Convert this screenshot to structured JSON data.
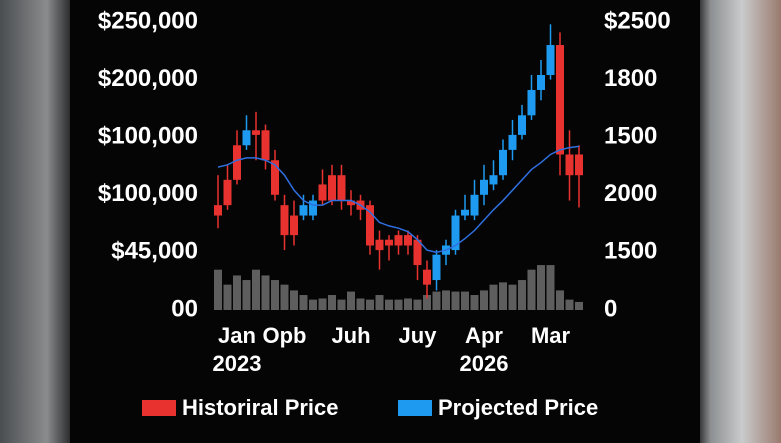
{
  "chart_data": {
    "type": "candlestick",
    "y_labels": [
      "$250,000",
      "$200,000",
      "$100,000",
      "$100,000",
      "$45,000",
      "00"
    ],
    "y2_labels": [
      "$2500",
      "1800",
      "1500",
      "2000",
      "1500",
      "0"
    ],
    "ylim": [
      0,
      250000
    ],
    "categories": [
      null,
      null,
      "Jan\n2023",
      null,
      null,
      null,
      null,
      "Opb",
      null,
      null,
      null,
      null,
      null,
      null,
      "Juh",
      null,
      null,
      null,
      null,
      null,
      null,
      "Juy",
      null,
      null,
      null,
      null,
      null,
      null,
      "Apr\n2026",
      null,
      null,
      null,
      null,
      null,
      null,
      "Mar",
      null,
      null,
      null
    ],
    "open": [
      91000,
      113000,
      143000,
      143000,
      156000,
      156000,
      130000,
      91000,
      82000,
      82000,
      82000,
      109000,
      117000,
      117000,
      95000,
      95000,
      91000,
      61000,
      61000,
      65000,
      65000,
      61000,
      35000,
      26000,
      48000,
      52000,
      82000,
      82000,
      100000,
      109000,
      117000,
      139000,
      152000,
      169000,
      191000,
      204000,
      230000,
      135000,
      135000
    ],
    "close": [
      82000,
      91000,
      113000,
      156000,
      152000,
      130000,
      100000,
      65000,
      65000,
      91000,
      95000,
      95000,
      95000,
      95000,
      91000,
      87000,
      56000,
      52000,
      56000,
      56000,
      56000,
      39000,
      22000,
      48000,
      56000,
      82000,
      87000,
      100000,
      113000,
      117000,
      139000,
      152000,
      169000,
      191000,
      204000,
      230000,
      135000,
      117000,
      117000
    ],
    "high": [
      117000,
      126000,
      156000,
      169000,
      172000,
      161000,
      139000,
      100000,
      95000,
      100000,
      100000,
      122000,
      126000,
      126000,
      104000,
      100000,
      95000,
      69000,
      65000,
      69000,
      69000,
      65000,
      43000,
      52000,
      61000,
      87000,
      100000,
      113000,
      126000,
      130000,
      148000,
      165000,
      178000,
      204000,
      217000,
      248000,
      241000,
      156000,
      143000
    ],
    "low": [
      71000,
      87000,
      109000,
      139000,
      130000,
      122000,
      95000,
      52000,
      56000,
      78000,
      78000,
      91000,
      91000,
      87000,
      82000,
      78000,
      48000,
      35000,
      43000,
      48000,
      48000,
      26000,
      10000,
      17000,
      39000,
      48000,
      78000,
      78000,
      91000,
      104000,
      113000,
      130000,
      148000,
      165000,
      182000,
      200000,
      117000,
      95000,
      89000
    ],
    "volume": [
      35000,
      22000,
      30000,
      26000,
      35000,
      30000,
      26000,
      22000,
      17000,
      13000,
      9000,
      10000,
      13000,
      9000,
      16000,
      10000,
      9000,
      13000,
      9000,
      9000,
      10000,
      9000,
      13000,
      16000,
      17000,
      16000,
      16000,
      13000,
      17000,
      22000,
      24000,
      22000,
      26000,
      35000,
      39000,
      39000,
      17000,
      9000,
      7000
    ],
    "projection": [
      124000,
      126000,
      130000,
      132000,
      132000,
      130000,
      126000,
      117000,
      104000,
      95000,
      91000,
      91000,
      95000,
      95000,
      95000,
      91000,
      85000,
      76000,
      73000,
      71000,
      68000,
      61000,
      52000,
      50000,
      52000,
      56000,
      62000,
      69000,
      78000,
      87000,
      95000,
      104000,
      113000,
      122000,
      128000,
      135000,
      139000,
      141000,
      142000
    ],
    "series": [
      {
        "name": "Historiral Price",
        "color": "#e8322f"
      },
      {
        "name": "Projected Price",
        "color": "#1e9bf0"
      }
    ],
    "volume_color": "#5e5e5e",
    "projection_color": "#2f6fe0"
  }
}
